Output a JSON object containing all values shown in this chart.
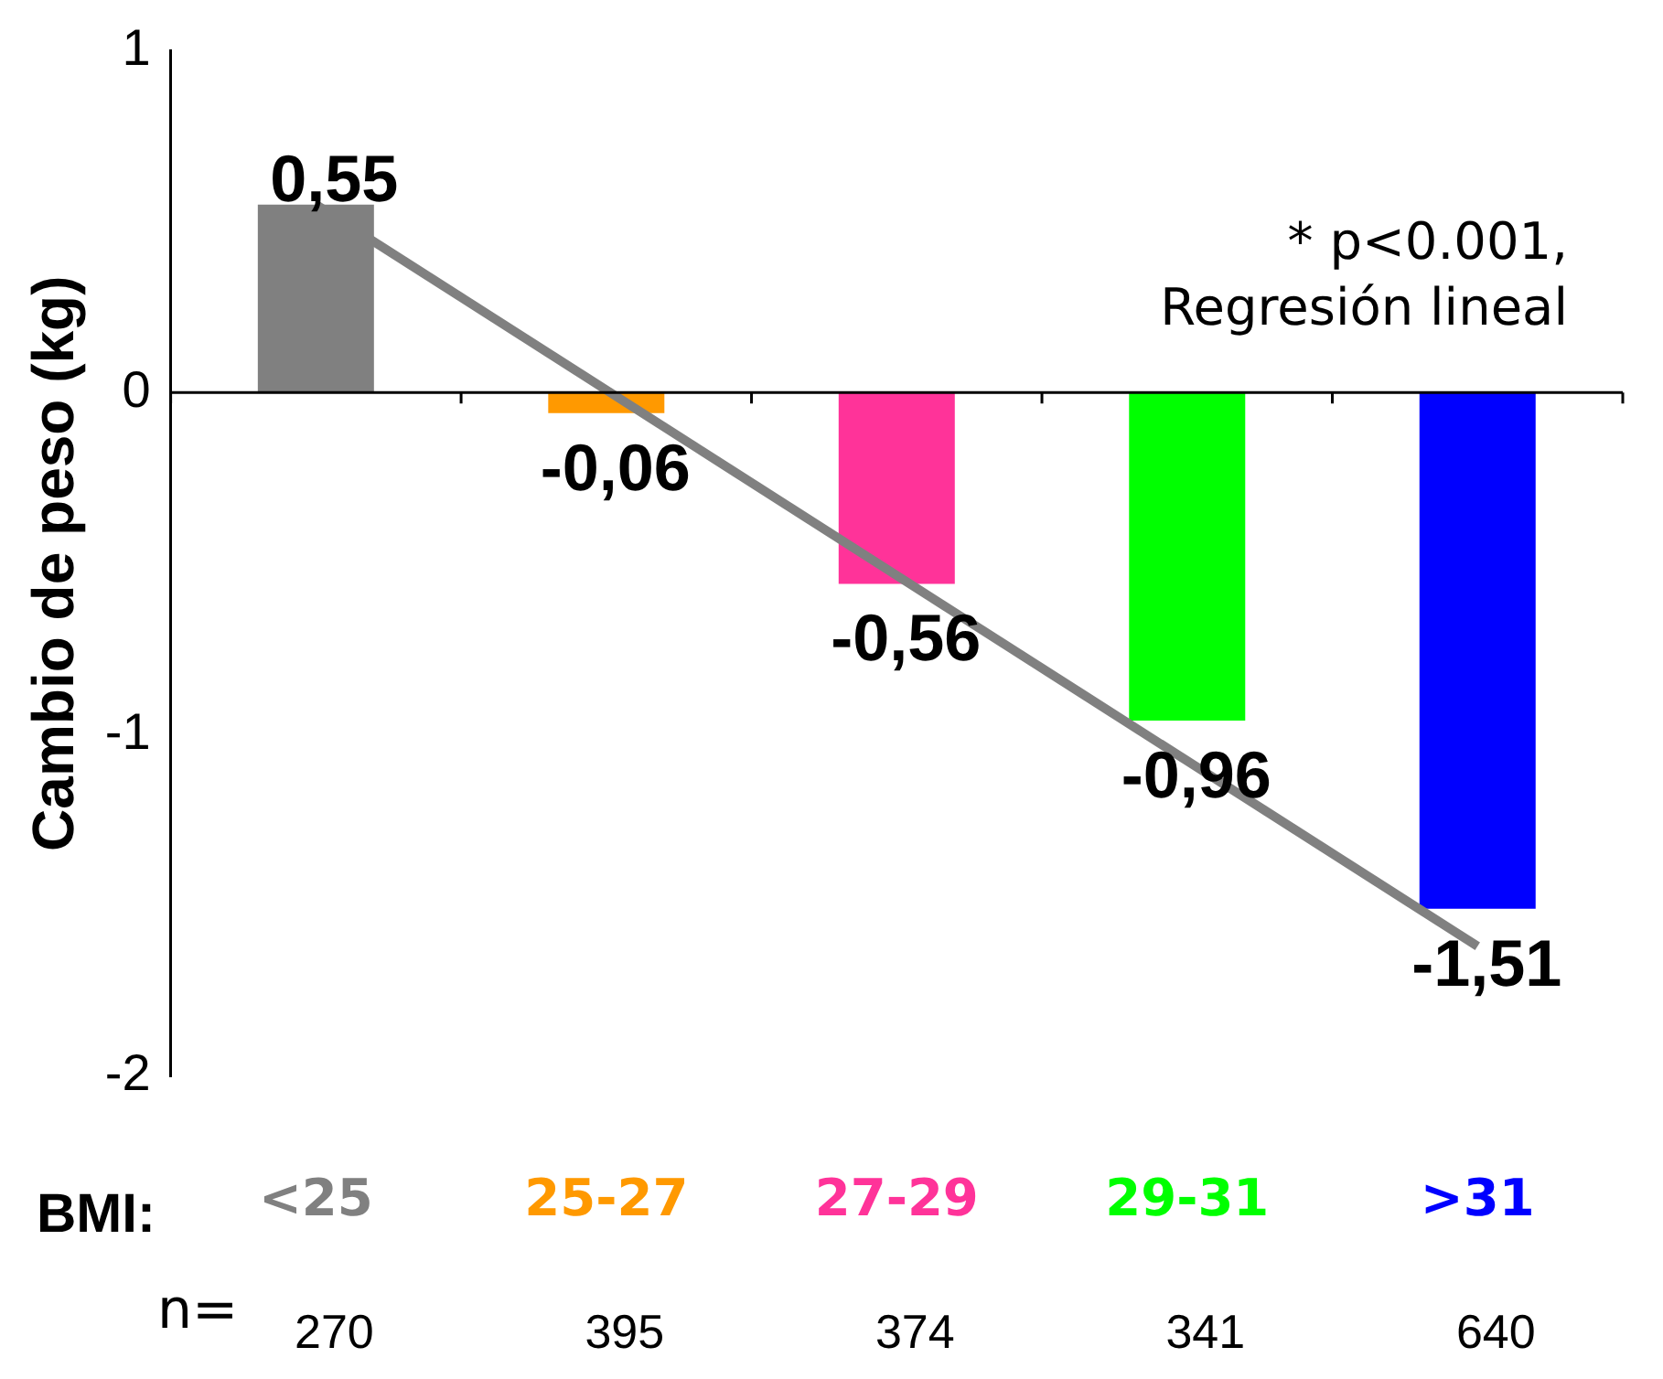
{
  "chart_data": {
    "type": "bar",
    "ylabel": "Cambio de peso (kg)",
    "xlabel": "BMI:",
    "categories": [
      "<25",
      "25-27",
      "27-29",
      "29-31",
      ">31"
    ],
    "series": [
      {
        "values": [
          0.55,
          -0.06,
          -0.56,
          -0.96,
          -1.51
        ],
        "colors": [
          "#808080",
          "#ff9900",
          "#ff3399",
          "#00ff00",
          "#0000ff"
        ],
        "value_labels": [
          "0,55",
          "-0,06",
          "-0,56",
          "-0,96",
          "-1,51"
        ]
      },
      {
        "type": "line",
        "x": [
          "<25",
          ">31"
        ],
        "values": [
          0.55,
          -1.62
        ],
        "color": "#808080"
      }
    ],
    "ref_lines": [
      {
        "axis": "y",
        "value": 0
      }
    ],
    "ylim": [
      -2,
      1
    ],
    "yticks": [
      -2,
      -1,
      0,
      1
    ],
    "grid": false,
    "legend": false,
    "marker": "none",
    "annotations": [
      "* p<0.001,\nRegresión lineal",
      "n=",
      "270",
      "395",
      "374",
      "341",
      "640"
    ]
  }
}
